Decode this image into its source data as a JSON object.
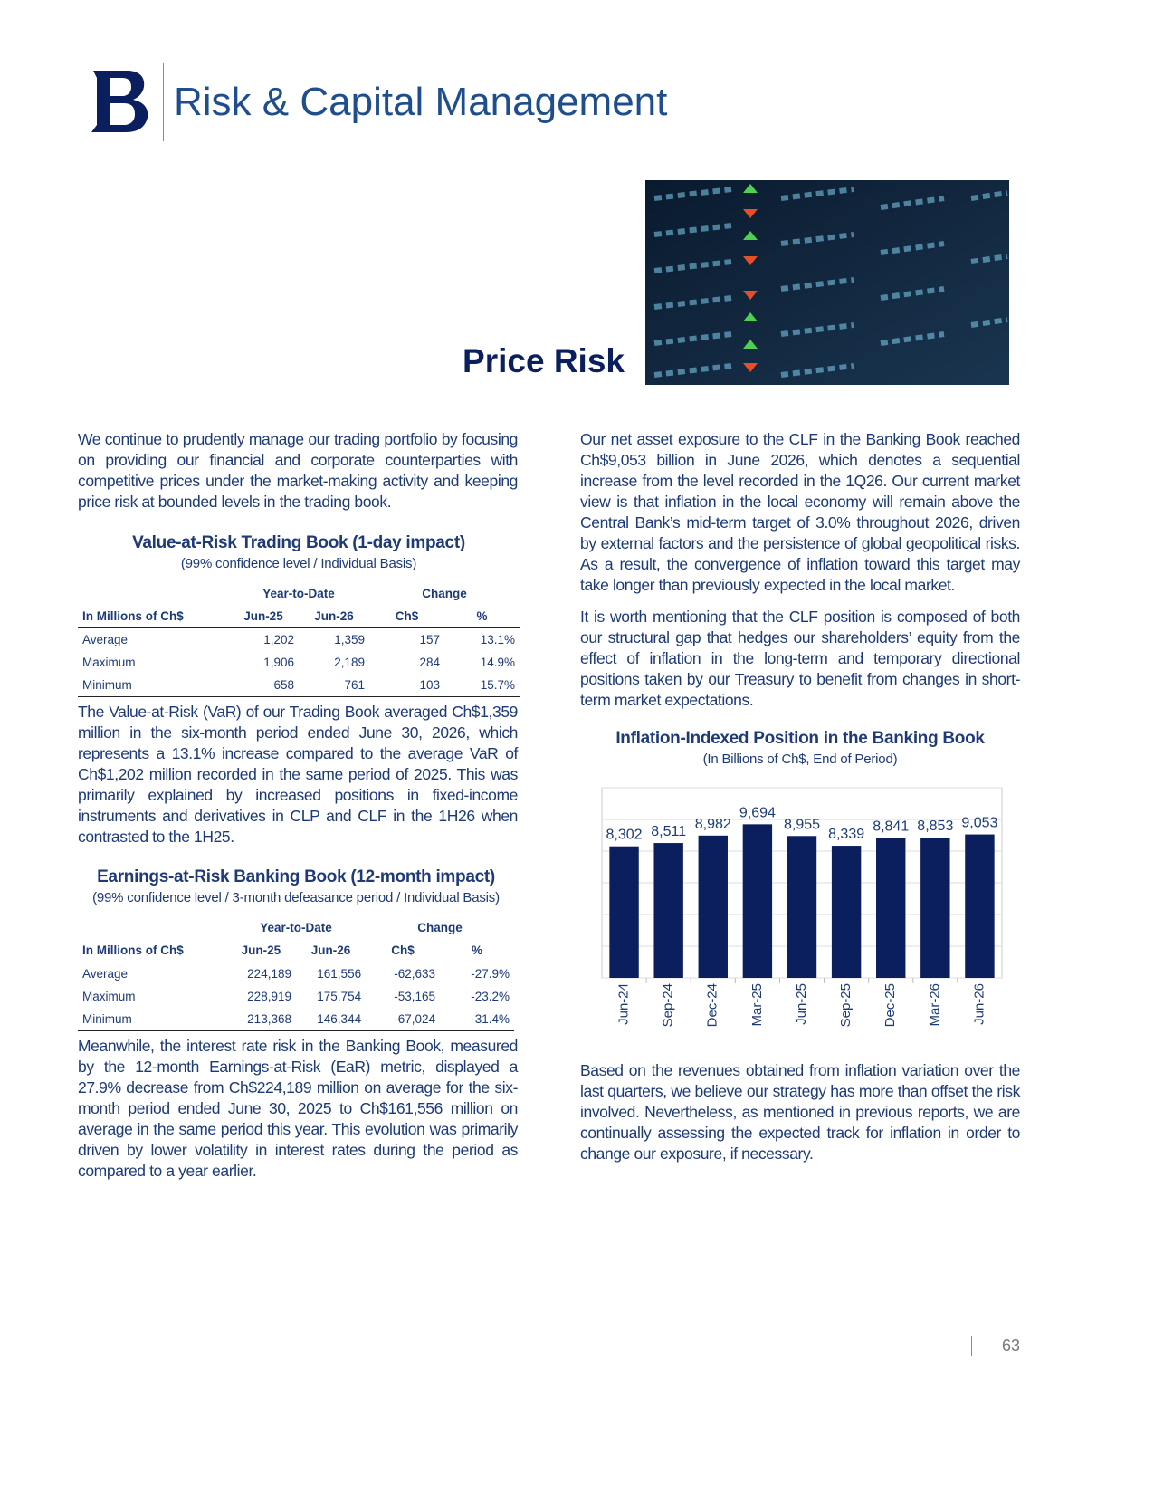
{
  "header": {
    "title": "Risk & Capital Management"
  },
  "section_title": "Price Risk",
  "intro": "We continue to prudently manage our trading portfolio by focusing on providing our financial and corporate counterparties with competitive prices under the market-making activity and keeping price risk at bounded levels in the trading book.",
  "var_table": {
    "title": "Value-at-Risk Trading Book (1-day impact)",
    "subtitle": "(99% confidence level / Individual Basis)",
    "group_headers": [
      "Year-to-Date",
      "Change"
    ],
    "columns": [
      "In Millions of Ch$",
      "Jun-25",
      "Jun-26",
      "Ch$",
      "%"
    ],
    "rows": [
      [
        "Average",
        "1,202",
        "1,359",
        "157",
        "13.1%"
      ],
      [
        "Maximum",
        "1,906",
        "2,189",
        "284",
        "14.9%"
      ],
      [
        "Minimum",
        "658",
        "761",
        "103",
        "15.7%"
      ]
    ]
  },
  "var_text": "The Value-at-Risk (VaR) of our Trading Book averaged Ch$1,359 million in the six-month period ended June 30, 2026, which represents a 13.1% increase compared to the average VaR of Ch$1,202 million recorded in the same period of 2025. This was primarily explained by increased positions in fixed-income instruments and derivatives in CLP and CLF in the 1H26 when contrasted to the 1H25.",
  "ear_table": {
    "title": "Earnings-at-Risk Banking Book (12-month impact)",
    "subtitle": "(99% confidence level / 3-month defeasance period / Individual Basis)",
    "group_headers": [
      "Year-to-Date",
      "Change"
    ],
    "columns": [
      "In Millions of Ch$",
      "Jun-25",
      "Jun-26",
      "Ch$",
      "%"
    ],
    "rows": [
      [
        "Average",
        "224,189",
        "161,556",
        "-62,633",
        "-27.9%"
      ],
      [
        "Maximum",
        "228,919",
        "175,754",
        "-53,165",
        "-23.2%"
      ],
      [
        "Minimum",
        "213,368",
        "146,344",
        "-67,024",
        "-31.4%"
      ]
    ]
  },
  "ear_text": "Meanwhile, the interest rate risk in the Banking Book, measured by the 12-month Earnings-at-Risk (EaR) metric, displayed a 27.9% decrease from Ch$224,189 million on average for the six-month period ended June 30, 2025 to Ch$161,556 million on average in the same period this year. This evolution was primarily driven by lower volatility in interest rates during the period as compared to a year earlier.",
  "right_paragraphs": [
    "Our net asset exposure to the CLF in the Banking Book reached Ch$9,053 billion in June 2026, which denotes a sequential increase from the level recorded in the 1Q26. Our current market view is that inflation in the local economy will remain above the Central Bank’s mid-term target of 3.0% throughout 2026, driven by external factors and the persistence of global geopolitical risks. As a result, the convergence of inflation toward this target may take longer than previously expected in the local market.",
    "It is worth mentioning that the CLF position is composed of both our structural gap that hedges our shareholders’ equity from the effect of inflation in the long-term and temporary directional positions taken by our Treasury to benefit from changes in short-term market expectations."
  ],
  "chart_data": {
    "type": "bar",
    "title": "Inflation-Indexed Position in the Banking Book",
    "subtitle": "(In Billions of Ch$, End of Period)",
    "categories": [
      "Jun-24",
      "Sep-24",
      "Dec-24",
      "Mar-25",
      "Jun-25",
      "Sep-25",
      "Dec-25",
      "Mar-26",
      "Jun-26"
    ],
    "values": [
      8302,
      8511,
      8982,
      9694,
      8955,
      8339,
      8841,
      8853,
      9053
    ],
    "value_labels": [
      "8,302",
      "8,511",
      "8,982",
      "9,694",
      "8,955",
      "8,339",
      "8,841",
      "8,853",
      "9,053"
    ],
    "color": "#0b1f5e",
    "ylim": [
      0,
      12000
    ],
    "yticks": [
      0,
      2000,
      4000,
      6000,
      8000,
      10000,
      12000
    ],
    "grid": true
  },
  "closing": "Based on the revenues obtained from inflation variation over the last quarters, we believe our strategy has more than offset the risk involved. Nevertheless, as mentioned in previous reports, we are continually assessing the expected track for inflation in order to change our exposure, if necessary.",
  "page_number": "63"
}
